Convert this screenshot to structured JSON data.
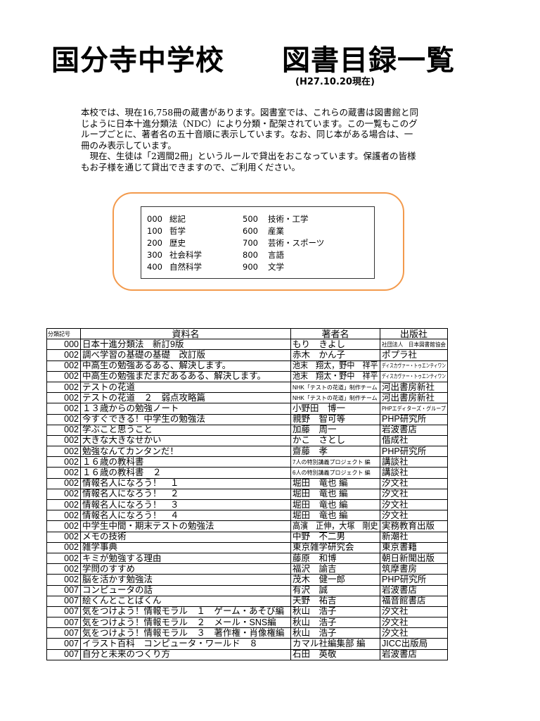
{
  "header": {
    "title": "国分寺中学校　　図書目録一覧",
    "as_of": "(H27.10.20現在)"
  },
  "intro": {
    "paragraphs": [
      "本校では、現在16,758冊の蔵書があります。図書室では、これらの蔵書は図書館と同じように日本十進分類法（NDC）により分類・配架されています。この一覧もこのグループごとに、著者名の五十音順に表示しています。なお、同じ本がある場合は、一冊のみ表示しています。",
      "　現在、生徒は「2週間2冊」というルールで貸出をおこなっています。保護者の皆様もお子様を通じて貸出できますので、ご利用ください。"
    ]
  },
  "ndc": [
    [
      "000",
      "総記",
      "500",
      "技術・工学"
    ],
    [
      "100",
      "哲学",
      "600",
      "産業"
    ],
    [
      "200",
      "歴史",
      "700",
      "芸術・スポーツ"
    ],
    [
      "300",
      "社会科学",
      "800",
      "言語"
    ],
    [
      "400",
      "自然科学",
      "900",
      "文学"
    ]
  ],
  "table": {
    "headers": [
      "分類記号",
      "資料名",
      "著者名",
      "出版社"
    ],
    "rows": [
      [
        "000",
        "日本十進分類法　新訂9版",
        "もり　きよし",
        "社団法人　日本図書館協会"
      ],
      [
        "002",
        "調べ学習の基礎の基礎　改訂版",
        "赤木　かん子",
        "ポプラ社"
      ],
      [
        "002",
        "中高生の勉強あるある、解決します。",
        "池末　翔太，野中　祥平",
        "ディスカヴァー・トゥエンティワン"
      ],
      [
        "002",
        "中高生の勉強まだまだあるある、解決します。",
        "池末　翔太・野中　祥平",
        "ディスカヴァー・トゥエンティワン"
      ],
      [
        "002",
        "テストの花道",
        "NHK「テストの花道」制作チーム",
        "河出書房新社"
      ],
      [
        "002",
        "テストの花道　２　弱点攻略篇",
        "NHK「テストの花道」制作チーム",
        "河出書房新社"
      ],
      [
        "002",
        "１３歳からの勉強ノート",
        "小野田　博一",
        "PHPエディターズ・グループ"
      ],
      [
        "002",
        "今すぐできる！中学生の勉強法",
        "親野　智可等",
        "PHP研究所"
      ],
      [
        "002",
        "学ぶこと思うこと",
        "加藤　周一",
        "岩波書店"
      ],
      [
        "002",
        "大きな大きなせかい",
        "かこ　さとし",
        "偕成社"
      ],
      [
        "002",
        "勉強なんてカンタンだ！",
        "齋藤　孝",
        "PHP研究所"
      ],
      [
        "002",
        "１６歳の教科書",
        "7人の特別講義プロジェクト 編",
        "講談社"
      ],
      [
        "002",
        "１６歳の教科書　２",
        "6人の特別講義プロジェクト 編",
        "講談社"
      ],
      [
        "002",
        "情報名人になろう！　１",
        "堀田　竜也 編",
        "汐文社"
      ],
      [
        "002",
        "情報名人になろう！　２",
        "堀田　竜也 編",
        "汐文社"
      ],
      [
        "002",
        "情報名人になろう！　３",
        "堀田　竜也 編",
        "汐文社"
      ],
      [
        "002",
        "情報名人になろう！　４",
        "堀田　竜也 編",
        "汐文社"
      ],
      [
        "002",
        "中学生中間・期末テストの勉強法",
        "高濱　正伸，大塚　剛史",
        "実務教育出版"
      ],
      [
        "002",
        "メモの技術",
        "中野　不二男",
        "新潮社"
      ],
      [
        "002",
        "雑学事典",
        "東京雑学研究会",
        "東京書籍"
      ],
      [
        "002",
        "キミが勉強する理由",
        "藤原　和博",
        "朝日新聞出版"
      ],
      [
        "002",
        "学問のすすめ",
        "福沢　諭吉",
        "筑摩書房"
      ],
      [
        "002",
        "脳を活かす勉強法",
        "茂木　健一郎",
        "PHP研究所"
      ],
      [
        "007",
        "コンピュータの話",
        "有沢　誠",
        "岩波書店"
      ],
      [
        "007",
        "絵くんとことばくん",
        "天野　祐吉",
        "福音館書店"
      ],
      [
        "007",
        "気をつけよう！情報モラル　１　ゲーム・あそび編",
        "秋山　浩子",
        "汐文社"
      ],
      [
        "007",
        "気をつけよう！情報モラル　２　メール・SNS編",
        "秋山　浩子",
        "汐文社"
      ],
      [
        "007",
        "気をつけよう！情報モラル　３　著作権・肖像権編",
        "秋山　浩子",
        "汐文社"
      ],
      [
        "007",
        "イラスト百科　コンピュータ・ワールド　８",
        "カマル社編集部 編",
        "JICC出版局"
      ],
      [
        "007",
        "自分と未来のつくり方",
        "石田　英敬",
        "岩波書店"
      ]
    ]
  },
  "colors": {
    "box_border": "#f39a4c"
  }
}
